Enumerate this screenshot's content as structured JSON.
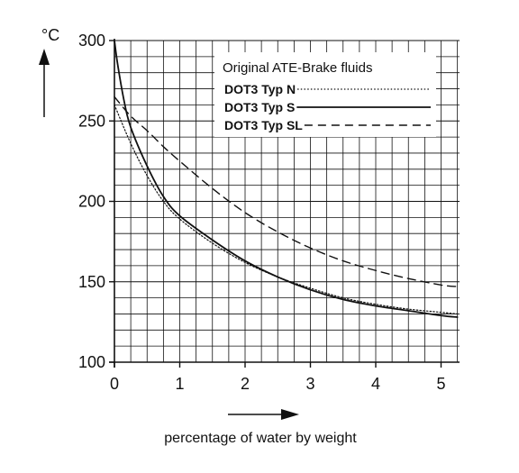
{
  "chart_data": {
    "type": "line",
    "title": "",
    "xlabel": "percentage of water by weight",
    "ylabel": "°C",
    "xlim": [
      0,
      5.25
    ],
    "ylim": [
      100,
      300
    ],
    "x_ticks": [
      0,
      1,
      2,
      3,
      4,
      5
    ],
    "y_ticks": [
      100,
      150,
      200,
      250,
      300
    ],
    "x_tick_labels": [
      "0",
      "1",
      "2",
      "3",
      "4",
      "5"
    ],
    "y_tick_labels": [
      "100",
      "150",
      "200",
      "250",
      "300"
    ],
    "grid": true,
    "legend": {
      "title": "Original ATE-Brake fluids",
      "placement": "top-right"
    },
    "series": [
      {
        "name": "DOT3 Typ N",
        "style": "dotted",
        "x": [
          0,
          0.25,
          0.5,
          0.75,
          1,
          1.5,
          2,
          2.5,
          3,
          3.5,
          4,
          4.5,
          5,
          5.25
        ],
        "y": [
          260,
          236,
          216,
          200,
          189,
          174,
          162,
          153,
          146,
          140,
          136,
          133,
          131,
          130
        ]
      },
      {
        "name": "DOT3 Typ S",
        "style": "solid",
        "x": [
          0,
          0.05,
          0.15,
          0.25,
          0.5,
          0.75,
          1,
          1.5,
          2,
          2.5,
          3,
          3.5,
          4,
          4.5,
          5,
          5.25
        ],
        "y": [
          300,
          285,
          262,
          246,
          222,
          203,
          191,
          176,
          163,
          153,
          145,
          139,
          135,
          132,
          129,
          128
        ]
      },
      {
        "name": "DOT3 Typ SL",
        "style": "dashed",
        "x": [
          0,
          0.25,
          0.5,
          0.75,
          1,
          1.5,
          2,
          2.5,
          3,
          3.5,
          4,
          4.5,
          5,
          5.25
        ],
        "y": [
          265,
          253,
          244,
          234,
          225,
          208,
          193,
          181,
          171,
          163,
          157,
          152,
          148,
          147
        ]
      }
    ]
  }
}
